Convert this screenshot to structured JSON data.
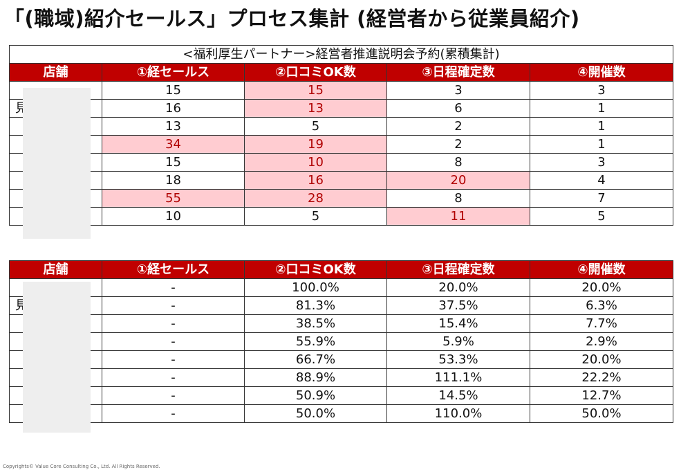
{
  "page_title": "「(職域)紹介セールス」プロセス集計 (経営者から従業員紹介)",
  "table1": {
    "caption": "<福利厚生パートナー>経営者推進説明会予約(累積集計)",
    "headers": [
      "店舗",
      "①経セールス",
      "②口コミOK数",
      "③日程確定数",
      "④開催数"
    ],
    "rows": [
      {
        "store": "",
        "c1": "15",
        "c2": "15",
        "c3": "3",
        "c4": "3"
      },
      {
        "store": "見",
        "c1": "16",
        "c2": "13",
        "c3": "6",
        "c4": "1"
      },
      {
        "store": "",
        "c1": "13",
        "c2": "5",
        "c3": "2",
        "c4": "1"
      },
      {
        "store": "",
        "c1": "34",
        "c2": "19",
        "c3": "2",
        "c4": "1"
      },
      {
        "store": "",
        "c1": "15",
        "c2": "10",
        "c3": "8",
        "c4": "3"
      },
      {
        "store": "",
        "c1": "18",
        "c2": "16",
        "c3": "20",
        "c4": "4"
      },
      {
        "store": "",
        "c1": "55",
        "c2": "28",
        "c3": "8",
        "c4": "7"
      },
      {
        "store": "",
        "c1": "10",
        "c2": "5",
        "c3": "11",
        "c4": "5"
      }
    ],
    "highlight_color": "#ffccd1"
  },
  "table2": {
    "headers": [
      "店舗",
      "①経セールス",
      "②口コミOK数",
      "③日程確定数",
      "④開催数"
    ],
    "rows": [
      {
        "store": "",
        "c1": "-",
        "c2": "100.0%",
        "c3": "20.0%",
        "c4": "20.0%"
      },
      {
        "store": "見",
        "c1": "-",
        "c2": "81.3%",
        "c3": "37.5%",
        "c4": "6.3%"
      },
      {
        "store": "",
        "c1": "-",
        "c2": "38.5%",
        "c3": "15.4%",
        "c4": "7.7%"
      },
      {
        "store": "",
        "c1": "-",
        "c2": "55.9%",
        "c3": "5.9%",
        "c4": "2.9%"
      },
      {
        "store": "",
        "c1": "-",
        "c2": "66.7%",
        "c3": "53.3%",
        "c4": "20.0%"
      },
      {
        "store": "",
        "c1": "-",
        "c2": "88.9%",
        "c3": "111.1%",
        "c4": "22.2%"
      },
      {
        "store": "",
        "c1": "-",
        "c2": "50.9%",
        "c3": "14.5%",
        "c4": "12.7%"
      },
      {
        "store": "",
        "c1": "-",
        "c2": "50.0%",
        "c3": "110.0%",
        "c4": "50.0%"
      }
    ]
  },
  "header_color": "#c00000",
  "footer": "Copyrights© Value Core Consulting Co., Ltd.  All Rights Reserved."
}
